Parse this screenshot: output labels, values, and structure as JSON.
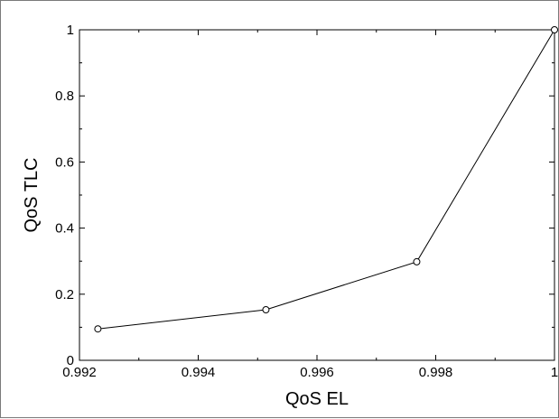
{
  "chart_data": {
    "type": "line",
    "xlabel": "QoS EL",
    "ylabel": "QoS TLC",
    "xlim": [
      0.992,
      1
    ],
    "ylim": [
      0,
      1
    ],
    "xticks": [
      0.992,
      0.994,
      0.996,
      0.998,
      1
    ],
    "xtick_labels": [
      "0.992",
      "0.994",
      "0.996",
      "0.998",
      "1"
    ],
    "yticks": [
      0,
      0.2,
      0.4,
      0.6,
      0.8,
      1
    ],
    "ytick_labels": [
      "0",
      "0.2",
      "0.4",
      "0.6",
      "0.8",
      "1"
    ],
    "grid": false,
    "marker": "circle",
    "line_color": "#000000",
    "series": [
      {
        "x": [
          0.99231,
          0.99514,
          0.99768,
          1.0
        ],
        "y": [
          0.095,
          0.153,
          0.298,
          1.0
        ]
      }
    ]
  }
}
